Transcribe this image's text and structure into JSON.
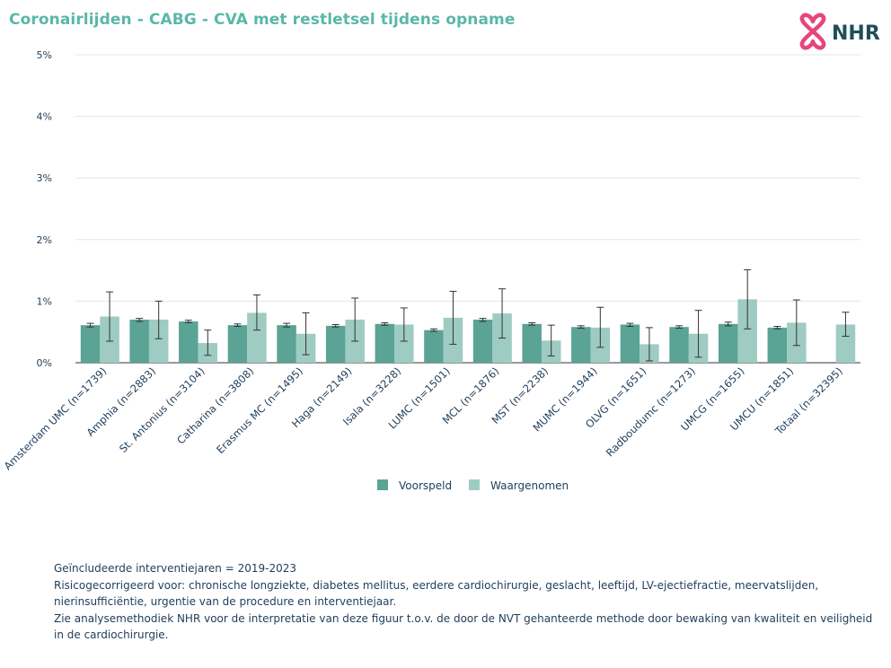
{
  "header": {
    "title": "Coronairlijden - CABG - CVA met restletsel tijdens opname",
    "logo_text": "NHR"
  },
  "colors": {
    "title": "#5ab7a9",
    "predicted": "#5aa395",
    "observed": "#9ecbc2",
    "error_bar": "#333333",
    "grid": "#e6e6e6",
    "logo_symbol": "#e8457a",
    "logo_text": "#1f4e57"
  },
  "chart_data": {
    "type": "bar",
    "ylim": [
      0,
      5
    ],
    "yticks": [
      "0%",
      "1%",
      "2%",
      "3%",
      "4%",
      "5%"
    ],
    "grid": true,
    "legend_position": "bottom-center",
    "categories": [
      "Amsterdam UMC (n=1739)",
      "Amphia (n=2883)",
      "St. Antonius (n=3104)",
      "Catharina (n=3808)",
      "Erasmus MC (n=1495)",
      "Haga (n=2149)",
      "Isala (n=3228)",
      "LUMC (n=1501)",
      "MCL (n=1876)",
      "MST (n=2238)",
      "MUMC (n=1944)",
      "OLVG (n=1651)",
      "Radboudumc (n=1273)",
      "UMCG (n=1655)",
      "UMCU (n=1851)",
      "Totaal (n=32395)"
    ],
    "series": [
      {
        "name": "Voorspeld",
        "values": [
          0.61,
          0.7,
          0.67,
          0.61,
          0.61,
          0.6,
          0.63,
          0.53,
          0.7,
          0.63,
          0.58,
          0.62,
          0.58,
          0.63,
          0.57,
          null
        ],
        "lower": [
          0.58,
          0.67,
          0.65,
          0.59,
          0.58,
          0.58,
          0.61,
          0.51,
          0.67,
          0.61,
          0.56,
          0.59,
          0.56,
          0.6,
          0.55,
          null
        ],
        "upper": [
          0.64,
          0.72,
          0.69,
          0.63,
          0.64,
          0.62,
          0.65,
          0.55,
          0.72,
          0.65,
          0.6,
          0.64,
          0.6,
          0.66,
          0.59,
          null
        ]
      },
      {
        "name": "Waargenomen",
        "values": [
          0.75,
          0.7,
          0.32,
          0.81,
          0.47,
          0.7,
          0.62,
          0.73,
          0.8,
          0.36,
          0.57,
          0.3,
          0.47,
          1.03,
          0.65,
          0.62
        ],
        "lower": [
          0.35,
          0.39,
          0.12,
          0.53,
          0.13,
          0.35,
          0.35,
          0.3,
          0.4,
          0.11,
          0.25,
          0.03,
          0.09,
          0.55,
          0.28,
          0.43
        ],
        "upper": [
          1.15,
          1.0,
          0.53,
          1.1,
          0.81,
          1.05,
          0.89,
          1.16,
          1.2,
          0.61,
          0.9,
          0.57,
          0.85,
          1.51,
          1.02,
          0.82
        ]
      }
    ]
  },
  "notes": [
    "Geïncludeerde interventiejaren = 2019-2023",
    "Risicogecorrigeerd voor: chronische longziekte, diabetes mellitus, eerdere cardiochirurgie, geslacht, leeftijd, LV-ejectiefractie, meervatslijden, nierinsufficiëntie, urgentie van de procedure en interventiejaar.",
    "Zie analysemethodiek NHR voor de interpretatie van deze figuur t.o.v. de door de NVT gehanteerde methode door bewaking van kwaliteit en veiligheid in de cardiochirurgie."
  ]
}
